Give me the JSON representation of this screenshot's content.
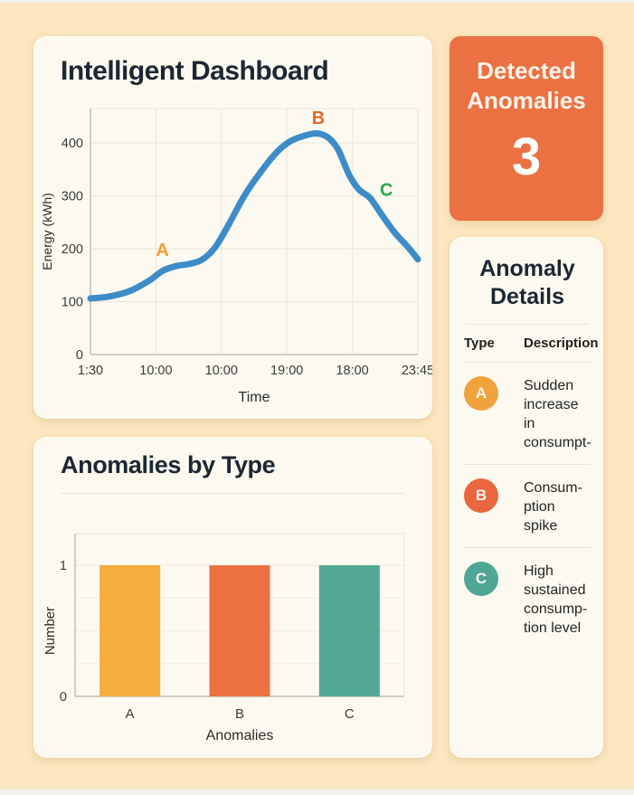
{
  "detected_card": {
    "title_line1": "Detected",
    "title_line2": "Anomalies",
    "count": "3",
    "background": "#EB7142"
  },
  "details_card": {
    "title_line1": "Anomaly",
    "title_line2": "Details",
    "header": {
      "type": "Type",
      "description": "Description"
    },
    "rows": [
      {
        "label": "A",
        "color": "#F0A23C",
        "lines": [
          "Sudden",
          "increase in",
          "consumpt-"
        ]
      },
      {
        "label": "B",
        "color": "#E9663E",
        "lines": [
          "Consum-",
          "ption",
          "spike"
        ]
      },
      {
        "label": "C",
        "color": "#4EA695",
        "lines": [
          "High",
          "sustained",
          "consump-",
          "tion level"
        ]
      }
    ]
  },
  "chart_data": [
    {
      "type": "line",
      "title": "Intelligent Dashboard",
      "xlabel": "Time",
      "ylabel": "Energy (kWh)",
      "x_ticks": [
        "1:30",
        "10:00",
        "10:00",
        "19:00",
        "18:00",
        "23:45"
      ],
      "y_ticks": [
        0,
        100,
        200,
        300,
        400
      ],
      "ylim": [
        0,
        465
      ],
      "grid": true,
      "legend": false,
      "line_color": "#3D8CC8",
      "points": [
        [
          0,
          106
        ],
        [
          0.3,
          110
        ],
        [
          0.6,
          120
        ],
        [
          0.9,
          140
        ],
        [
          1.1,
          158
        ],
        [
          1.3,
          167
        ],
        [
          1.5,
          171
        ],
        [
          1.7,
          179
        ],
        [
          1.9,
          202
        ],
        [
          2.1,
          243
        ],
        [
          2.35,
          300
        ],
        [
          2.6,
          345
        ],
        [
          2.85,
          383
        ],
        [
          3.05,
          403
        ],
        [
          3.25,
          413
        ],
        [
          3.45,
          418
        ],
        [
          3.62,
          411
        ],
        [
          3.78,
          388
        ],
        [
          3.95,
          340
        ],
        [
          4.1,
          312
        ],
        [
          4.27,
          296
        ],
        [
          4.45,
          264
        ],
        [
          4.65,
          230
        ],
        [
          4.85,
          203
        ],
        [
          5,
          180
        ]
      ],
      "annotations": [
        {
          "label": "A",
          "color": "#F0A03A",
          "x": 1.1,
          "y": 198
        },
        {
          "label": "B",
          "color": "#DC6B2F",
          "x": 3.48,
          "y": 448
        },
        {
          "label": "C",
          "color": "#28A750",
          "x": 4.52,
          "y": 312
        }
      ]
    },
    {
      "type": "bar",
      "title": "Anomalies by Type",
      "xlabel": "Anomalies",
      "ylabel": "Number",
      "categories": [
        "A",
        "B",
        "C"
      ],
      "values": [
        1,
        1,
        1
      ],
      "colors": [
        "#F5AD3D",
        "#EC7140",
        "#52A893"
      ],
      "y_ticks": [
        0,
        1
      ],
      "ylim": [
        0,
        1.24
      ],
      "grid": true,
      "legend": false
    }
  ]
}
